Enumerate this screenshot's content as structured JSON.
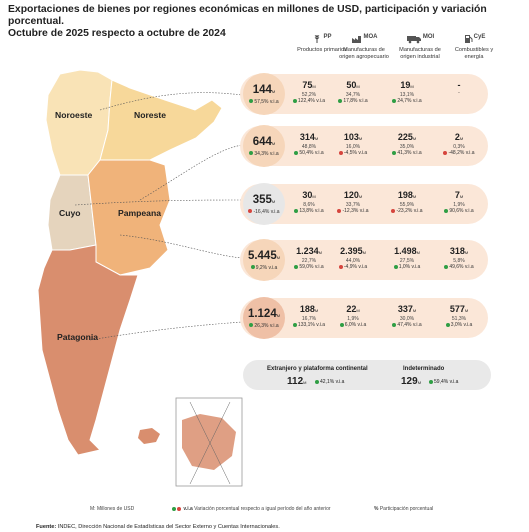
{
  "title": {
    "line1": "Exportaciones de bienes por regiones económicas en millones de USD, participación y variación porcentual.",
    "line2": "Octubre de 2025 respecto a octubre de 2024"
  },
  "categories": [
    {
      "code": "PP",
      "label": "Productos primarios",
      "icon": "grain-icon"
    },
    {
      "code": "MOA",
      "label": "Manufacturas de origen agropecuario",
      "icon": "factory-leaf-icon"
    },
    {
      "code": "MOI",
      "label": "Manufacturas de origen industrial",
      "icon": "truck-icon"
    },
    {
      "code": "CyE",
      "label": "Combustibles y energía",
      "icon": "fuel-icon"
    }
  ],
  "units": {
    "musd": "M",
    "va": "v.i.a"
  },
  "regions": [
    {
      "name": "Noroeste",
      "name2": "Noreste",
      "total": "144",
      "total_var": "57,5% v.i.a",
      "total_var_dir": "up",
      "color": "#f6d6ba",
      "cells": [
        {
          "v": "75",
          "p": "52,2%",
          "r": "122,4% v.i.a",
          "d": "up"
        },
        {
          "v": "50",
          "p": "34,7%",
          "r": "17,8% v.i.a",
          "d": "up"
        },
        {
          "v": "19",
          "p": "13,1%",
          "r": "24,7% v.i.a",
          "d": "up"
        },
        {
          "v": "-",
          "p": "",
          "r": "-",
          "d": "none"
        }
      ]
    },
    {
      "name": "Pampeana",
      "total": "644",
      "total_var": "34,3% v.i.a",
      "total_var_dir": "up",
      "color": "#f6d6ba",
      "cells": [
        {
          "v": "314",
          "p": "48,8%",
          "r": "50,4% v.i.a",
          "d": "up"
        },
        {
          "v": "103",
          "p": "16,0%",
          "r": "-4,5% v.i.a",
          "d": "down"
        },
        {
          "v": "225",
          "p": "35,0%",
          "r": "41,3% v.i.a",
          "d": "up"
        },
        {
          "v": "2",
          "p": "0,3%",
          "r": "-48,2% v.i.a",
          "d": "down"
        }
      ]
    },
    {
      "name": "Cuyo",
      "total": "355",
      "total_var": "-16,4% v.i.a",
      "total_var_dir": "down",
      "color": "#e7e7e7",
      "cells": [
        {
          "v": "30",
          "p": "8,6%",
          "r": "13,8% v.i.a",
          "d": "up"
        },
        {
          "v": "120",
          "p": "33,7%",
          "r": "-12,3% v.i.a",
          "d": "down"
        },
        {
          "v": "198",
          "p": "55,9%",
          "r": "-23,2% v.i.a",
          "d": "down"
        },
        {
          "v": "7",
          "p": "1,9%",
          "r": "90,6% v.i.a",
          "d": "up"
        }
      ]
    },
    {
      "name": "Centro",
      "total": "5.445",
      "total_var": "9,2% v.i.a",
      "total_var_dir": "up",
      "color": "#f6d6ba",
      "cells": [
        {
          "v": "1.234",
          "p": "22,7%",
          "r": "59,0% v.i.a",
          "d": "up"
        },
        {
          "v": "2.395",
          "p": "44,0%",
          "r": "-4,9% v.i.a",
          "d": "down"
        },
        {
          "v": "1.498",
          "p": "27,5%",
          "r": "1,0% v.i.a",
          "d": "up"
        },
        {
          "v": "318",
          "p": "5,8%",
          "r": "49,6% v.i.a",
          "d": "up"
        }
      ]
    },
    {
      "name": "Patagonia",
      "total": "1.124",
      "total_var": "26,3% v.i.a",
      "total_var_dir": "up",
      "color": "#efc0a6",
      "cells": [
        {
          "v": "188",
          "p": "16,7%",
          "r": "133,1% v.i.a",
          "d": "up"
        },
        {
          "v": "22",
          "p": "1,9%",
          "r": "6,0% v.i.a",
          "d": "up"
        },
        {
          "v": "337",
          "p": "30,0%",
          "r": "47,4% v.i.a",
          "d": "up"
        },
        {
          "v": "577",
          "p": "51,3%",
          "r": "3,0% v.i.a",
          "d": "up"
        }
      ]
    }
  ],
  "map_labels": {
    "noroeste": "Noroeste",
    "noreste": "Noreste",
    "cuyo": "Cuyo",
    "pampeana": "Pampeana",
    "patagonia": "Patagonia"
  },
  "extra": {
    "ext_label": "Extranjero y plataforma continental",
    "ext_value": "112",
    "ext_var": "42,1% v.i.a",
    "ind_label": "Indeterminado",
    "ind_value": "129",
    "ind_var": "59,4% v.i.a"
  },
  "legend": {
    "musd": "M: Millones de USD",
    "via_code": "v.i.a",
    "via": "Variación porcentual respecto a igual período del año anterior",
    "pct_sym": "%",
    "pct": "Participación porcentual"
  },
  "source": {
    "label": "Fuente:",
    "text": "INDEC, Dirección Nacional de Estadísticas del Sector Externo y Cuentas Internacionales."
  },
  "colors": {
    "up": "#2f9e44",
    "down": "#d6453d",
    "noa": "#f9e3b6",
    "nea": "#f7d89a",
    "cuyo": "#e5d4bd",
    "pampeana": "#f0b37a",
    "patagonia": "#d98e6e"
  }
}
